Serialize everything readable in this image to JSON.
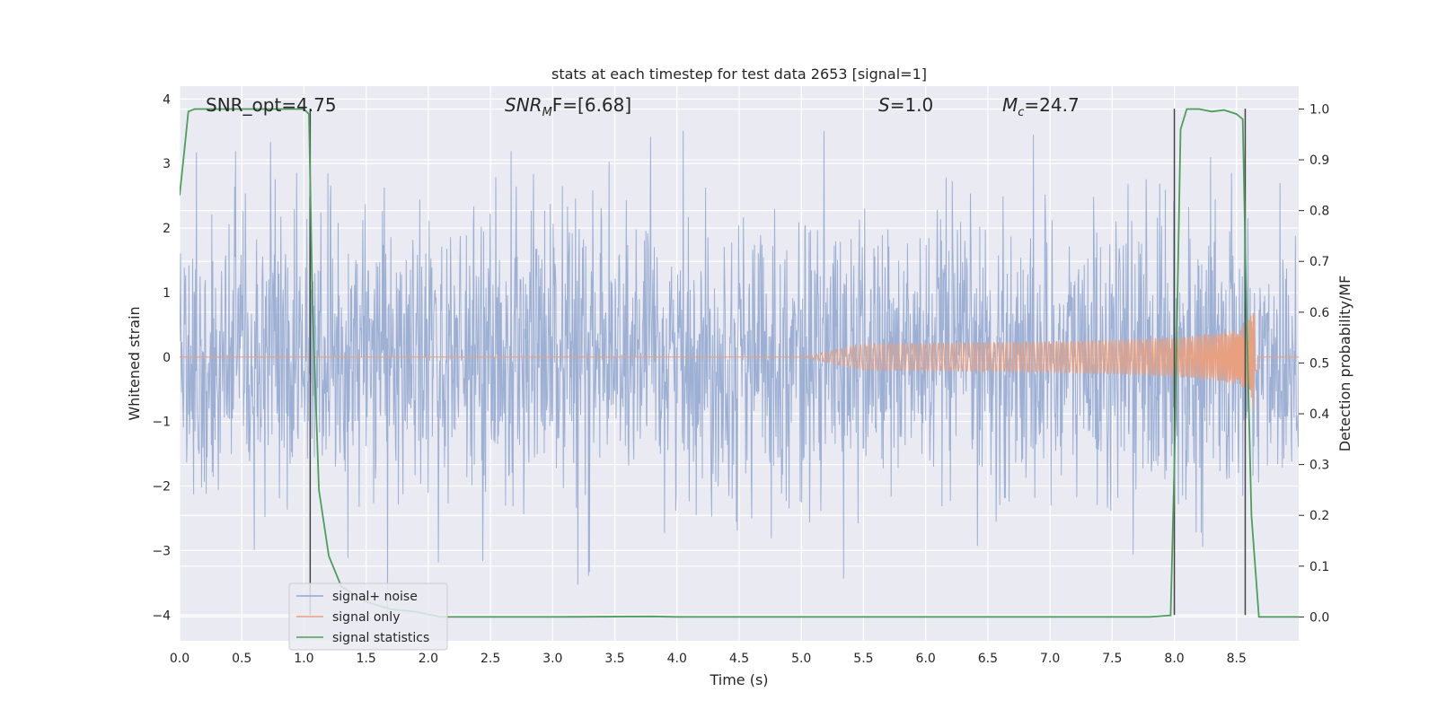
{
  "chart_data": {
    "type": "line",
    "title": "stats at each timestep for test data 2653 [signal=1]",
    "xlabel": "Time (s)",
    "ylabel_left": "Whitened strain",
    "ylabel_right": "Detection probability/MF",
    "xlim": [
      0.0,
      9.0
    ],
    "ylim_left": [
      -4.4,
      4.2
    ],
    "ylim_right": [
      -0.047,
      1.045
    ],
    "x_ticks": [
      "0.0",
      "0.5",
      "1.0",
      "1.5",
      "2.0",
      "2.5",
      "3.0",
      "3.5",
      "4.0",
      "4.5",
      "5.0",
      "5.5",
      "6.0",
      "6.5",
      "7.0",
      "7.5",
      "8.0",
      "8.5"
    ],
    "y_ticks_left": [
      "−4",
      "−3",
      "−2",
      "−1",
      "0",
      "1",
      "2",
      "3",
      "4"
    ],
    "y_ticks_right": [
      "0.0",
      "0.1",
      "0.2",
      "0.3",
      "0.4",
      "0.5",
      "0.6",
      "0.7",
      "0.8",
      "0.9",
      "1.0"
    ],
    "grid": true,
    "legend_position": "lower-left",
    "annotations": [
      {
        "id": "snr_opt",
        "text": "SNR_opt=4.75",
        "x": 0.2,
        "y": 3.9
      },
      {
        "id": "snr_mf",
        "text_main": "SNR",
        "text_sub": "M",
        "text_rest": "F=[6.68]",
        "x": 2.6,
        "y": 3.9
      },
      {
        "id": "s",
        "text_main": "S",
        "text_rest": "=1.0",
        "x": 5.6,
        "y": 3.9
      },
      {
        "id": "mc",
        "text_main": "M",
        "text_sub": "c",
        "text_rest": "=24.7",
        "x": 6.6,
        "y": 3.9
      }
    ],
    "series": [
      {
        "name": "signal+ noise",
        "color": "#8fa6cf",
        "axis": "left",
        "description_envelope": {
          "typical_amplitude": 2.0,
          "peak_amplitude": 3.9
        }
      },
      {
        "name": "signal only",
        "color": "#e8a080",
        "axis": "left",
        "chirp": {
          "start_time": 5.0,
          "merger_time": 8.65,
          "peak_amplitude": 1.1
        }
      },
      {
        "name": "signal statistics",
        "color": "#4c9f5a",
        "axis": "right",
        "x": [
          0.0,
          0.03,
          0.07,
          0.12,
          0.2,
          0.4,
          0.6,
          0.8,
          1.0,
          1.04,
          1.07,
          1.12,
          1.2,
          1.3,
          1.5,
          1.7,
          1.9,
          2.0,
          2.1,
          3.0,
          3.8,
          4.0,
          5.0,
          6.0,
          7.0,
          7.8,
          7.97,
          8.0,
          8.05,
          8.1,
          8.2,
          8.3,
          8.4,
          8.5,
          8.55,
          8.58,
          8.62,
          8.68,
          8.75,
          9.0
        ],
        "values": [
          0.83,
          0.9,
          0.995,
          1.0,
          1.0,
          1.0,
          1.0,
          1.0,
          1.0,
          0.99,
          0.6,
          0.25,
          0.12,
          0.06,
          0.03,
          0.015,
          0.01,
          0.005,
          0.0,
          0.0,
          0.001,
          0.0,
          0.0,
          0.0,
          0.0,
          0.0,
          0.003,
          0.3,
          0.96,
          1.0,
          1.0,
          0.995,
          0.998,
          0.99,
          0.98,
          0.6,
          0.2,
          0.0,
          0.0,
          0.0
        ]
      }
    ],
    "vertical_lines": [
      {
        "x": 1.05,
        "ymin_strain": -4.0,
        "ymax_strain": 3.85,
        "color": "#444444"
      },
      {
        "x": 8.0,
        "ymin_strain": -4.0,
        "ymax_strain": 3.85,
        "color": "#444444"
      },
      {
        "x": 8.57,
        "ymin_strain": -4.0,
        "ymax_strain": 3.85,
        "color": "#444444"
      }
    ],
    "legend": {
      "entries": [
        {
          "label": "signal+ noise",
          "color": "#8fa6cf"
        },
        {
          "label": "signal only",
          "color": "#e8a080"
        },
        {
          "label": "signal statistics",
          "color": "#4c9f5a"
        }
      ]
    },
    "colors": {
      "plot_background": "#eaeaf2",
      "grid": "#ffffff"
    }
  }
}
